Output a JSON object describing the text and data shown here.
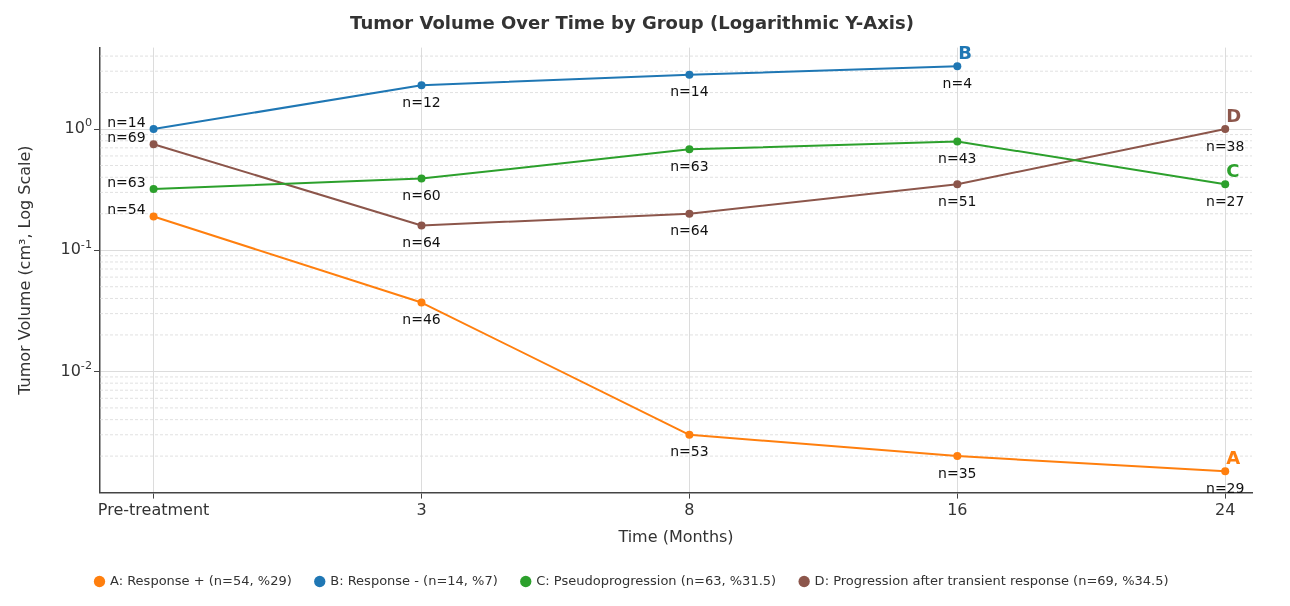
{
  "chart_data": {
    "type": "line",
    "title": "Tumor Volume Over Time by Group (Logarithmic Y-Axis)",
    "xlabel": "Time (Months)",
    "ylabel": "Tumor Volume (cm³, Log Scale)",
    "categories": [
      "Pre-treatment",
      "3",
      "8",
      "16",
      "24"
    ],
    "series": [
      {
        "name": "A: Response + (n=54, %29)",
        "color": "#ff7f0e",
        "values": [
          0.19,
          0.037,
          0.003,
          0.002,
          0.0015
        ]
      },
      {
        "name": "B: Response - (n=14, %7)",
        "color": "#1f77b4",
        "values": [
          1.0,
          2.3,
          2.8,
          3.3,
          null
        ]
      },
      {
        "name": "C: Pseudoprogression (n=63, %31.5)",
        "color": "#2ca02c",
        "values": [
          0.32,
          0.39,
          0.68,
          0.79,
          0.35
        ]
      },
      {
        "name": "D: Progression after transient response (n=69, %34.5)",
        "color": "#8c564b",
        "values": [
          0.75,
          0.16,
          0.2,
          0.35,
          1.0
        ]
      }
    ],
    "log": "y",
    "ylim": [
      0.001,
      4.7
    ],
    "yticks": [
      {
        "value": 0.01,
        "label": "10$^{-2}$"
      },
      {
        "value": 0.1,
        "label": "10$^{-1}$"
      },
      {
        "value": 1,
        "label": "10$^{0}$"
      }
    ],
    "grid": true,
    "legend": "bottom",
    "marker": "circle",
    "line_style": "solid",
    "annotations": [
      {
        "text": "A",
        "x": "24",
        "y": 0.0015
      },
      {
        "text": "B",
        "x": "16",
        "y": 3.3
      },
      {
        "text": "C",
        "x": "24",
        "y": 0.35
      },
      {
        "text": "D",
        "x": "24",
        "y": 1.0
      },
      {
        "text": "n=54",
        "x": "Pre-treatment",
        "y": 0.19
      },
      {
        "text": "n=14",
        "x": "Pre-treatment",
        "y": 1.0
      },
      {
        "text": "n=63",
        "x": "Pre-treatment",
        "y": 0.32
      },
      {
        "text": "n=69",
        "x": "Pre-treatment",
        "y": 0.75
      },
      {
        "text": "n=46",
        "x": "3",
        "y": 0.037
      },
      {
        "text": "n=12",
        "x": "3",
        "y": 2.3
      },
      {
        "text": "n=60",
        "x": "3",
        "y": 0.39
      },
      {
        "text": "n=64",
        "x": "3",
        "y": 0.16
      },
      {
        "text": "n=53",
        "x": "8",
        "y": 0.003
      },
      {
        "text": "n=14",
        "x": "8",
        "y": 2.8
      },
      {
        "text": "n=63",
        "x": "8",
        "y": 0.68
      },
      {
        "text": "n=64",
        "x": "8",
        "y": 0.2
      },
      {
        "text": "n=35",
        "x": "16",
        "y": 0.002
      },
      {
        "text": "n=4",
        "x": "16",
        "y": 3.3
      },
      {
        "text": "n=43",
        "x": "16",
        "y": 0.79
      },
      {
        "text": "n=51",
        "x": "16",
        "y": 0.35
      },
      {
        "text": "n=29",
        "x": "24",
        "y": 0.0015
      },
      {
        "text": "n=27",
        "x": "24",
        "y": 0.35
      },
      {
        "text": "n=38",
        "x": "24",
        "y": 1.0
      }
    ]
  }
}
